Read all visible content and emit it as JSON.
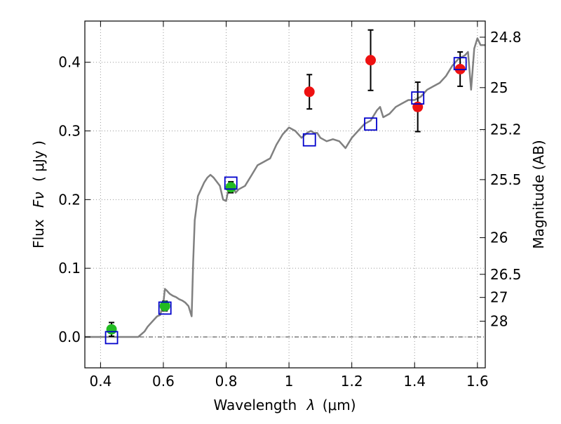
{
  "chart_data": {
    "type": "scatter",
    "xlabel_text": "Wavelength",
    "xlabel_symbol": "λ",
    "xlabel_unit": "(μm)",
    "ylabel_text": "Flux",
    "ylabel_symbol": "Fν",
    "ylabel_unit": "( μJy )",
    "y2label": "Magnitude (AB)",
    "xlim": [
      0.35,
      1.625
    ],
    "ylim": [
      -0.045,
      0.46
    ],
    "grid": true,
    "x_ticks": [
      {
        "value": 0.4,
        "label": "0.4"
      },
      {
        "value": 0.6,
        "label": "0.6"
      },
      {
        "value": 0.8,
        "label": "0.8"
      },
      {
        "value": 1.0,
        "label": "1"
      },
      {
        "value": 1.2,
        "label": "1.2"
      },
      {
        "value": 1.4,
        "label": "1.4"
      },
      {
        "value": 1.6,
        "label": "1.6"
      }
    ],
    "y_ticks": [
      {
        "value": 0.0,
        "label": "0.0"
      },
      {
        "value": 0.1,
        "label": "0.1"
      },
      {
        "value": 0.2,
        "label": "0.2"
      },
      {
        "value": 0.3,
        "label": "0.3"
      },
      {
        "value": 0.4,
        "label": "0.4"
      }
    ],
    "mag_ticks": [
      {
        "value": 24.8,
        "label": "24.8"
      },
      {
        "value": 25.0,
        "label": "25"
      },
      {
        "value": 25.2,
        "label": "25.2"
      },
      {
        "value": 25.5,
        "label": "25.5"
      },
      {
        "value": 26.0,
        "label": "26"
      },
      {
        "value": 26.5,
        "label": "26.5"
      },
      {
        "value": 27.0,
        "label": "27"
      },
      {
        "value": 28.0,
        "label": "28"
      }
    ],
    "colors": {
      "model": "#808080",
      "model_photometry": "#0000cc",
      "optical": "#22bb22",
      "nir": "#ee1111",
      "errorbar": "#000000",
      "grid": "#999999"
    },
    "model_spectrum": {
      "x": [
        0.35,
        0.4,
        0.45,
        0.5,
        0.52,
        0.54,
        0.55,
        0.56,
        0.57,
        0.58,
        0.59,
        0.6,
        0.605,
        0.61,
        0.62,
        0.63,
        0.64,
        0.65,
        0.66,
        0.67,
        0.68,
        0.69,
        0.695,
        0.7,
        0.71,
        0.72,
        0.73,
        0.74,
        0.75,
        0.76,
        0.77,
        0.78,
        0.79,
        0.8,
        0.81,
        0.82,
        0.83,
        0.84,
        0.86,
        0.88,
        0.9,
        0.92,
        0.94,
        0.96,
        0.98,
        1.0,
        1.02,
        1.04,
        1.06,
        1.07,
        1.08,
        1.09,
        1.1,
        1.12,
        1.14,
        1.16,
        1.18,
        1.2,
        1.22,
        1.24,
        1.26,
        1.28,
        1.29,
        1.3,
        1.32,
        1.34,
        1.36,
        1.38,
        1.4,
        1.42,
        1.44,
        1.46,
        1.48,
        1.5,
        1.52,
        1.54,
        1.56,
        1.57,
        1.58,
        1.59,
        1.6,
        1.61,
        1.625
      ],
      "y": [
        0.0,
        0.0,
        0.0,
        0.0,
        0.0,
        0.008,
        0.015,
        0.02,
        0.025,
        0.03,
        0.032,
        0.05,
        0.07,
        0.068,
        0.063,
        0.06,
        0.058,
        0.055,
        0.053,
        0.05,
        0.045,
        0.03,
        0.11,
        0.17,
        0.205,
        0.215,
        0.225,
        0.232,
        0.236,
        0.232,
        0.226,
        0.22,
        0.2,
        0.198,
        0.222,
        0.222,
        0.21,
        0.215,
        0.22,
        0.235,
        0.25,
        0.255,
        0.26,
        0.28,
        0.295,
        0.305,
        0.3,
        0.29,
        0.298,
        0.3,
        0.297,
        0.297,
        0.29,
        0.285,
        0.288,
        0.285,
        0.275,
        0.29,
        0.3,
        0.31,
        0.315,
        0.33,
        0.335,
        0.32,
        0.325,
        0.335,
        0.34,
        0.345,
        0.345,
        0.35,
        0.36,
        0.365,
        0.37,
        0.38,
        0.395,
        0.405,
        0.41,
        0.415,
        0.36,
        0.42,
        0.435,
        0.425,
        0.425
      ]
    },
    "model_photometry": {
      "x": [
        0.435,
        0.605,
        0.815,
        1.065,
        1.26,
        1.41,
        1.545
      ],
      "y": [
        -0.001,
        0.042,
        0.224,
        0.287,
        0.31,
        0.348,
        0.398
      ]
    },
    "optical_points": {
      "x": [
        0.435,
        0.605,
        0.815
      ],
      "y": [
        0.011,
        0.045,
        0.218
      ],
      "err": [
        0.01,
        0.007,
        0.008
      ]
    },
    "nir_points": {
      "x": [
        1.065,
        1.26,
        1.41,
        1.545
      ],
      "y": [
        0.357,
        0.403,
        0.335,
        0.39
      ],
      "err": [
        0.025,
        0.044,
        0.036,
        0.025
      ]
    }
  }
}
